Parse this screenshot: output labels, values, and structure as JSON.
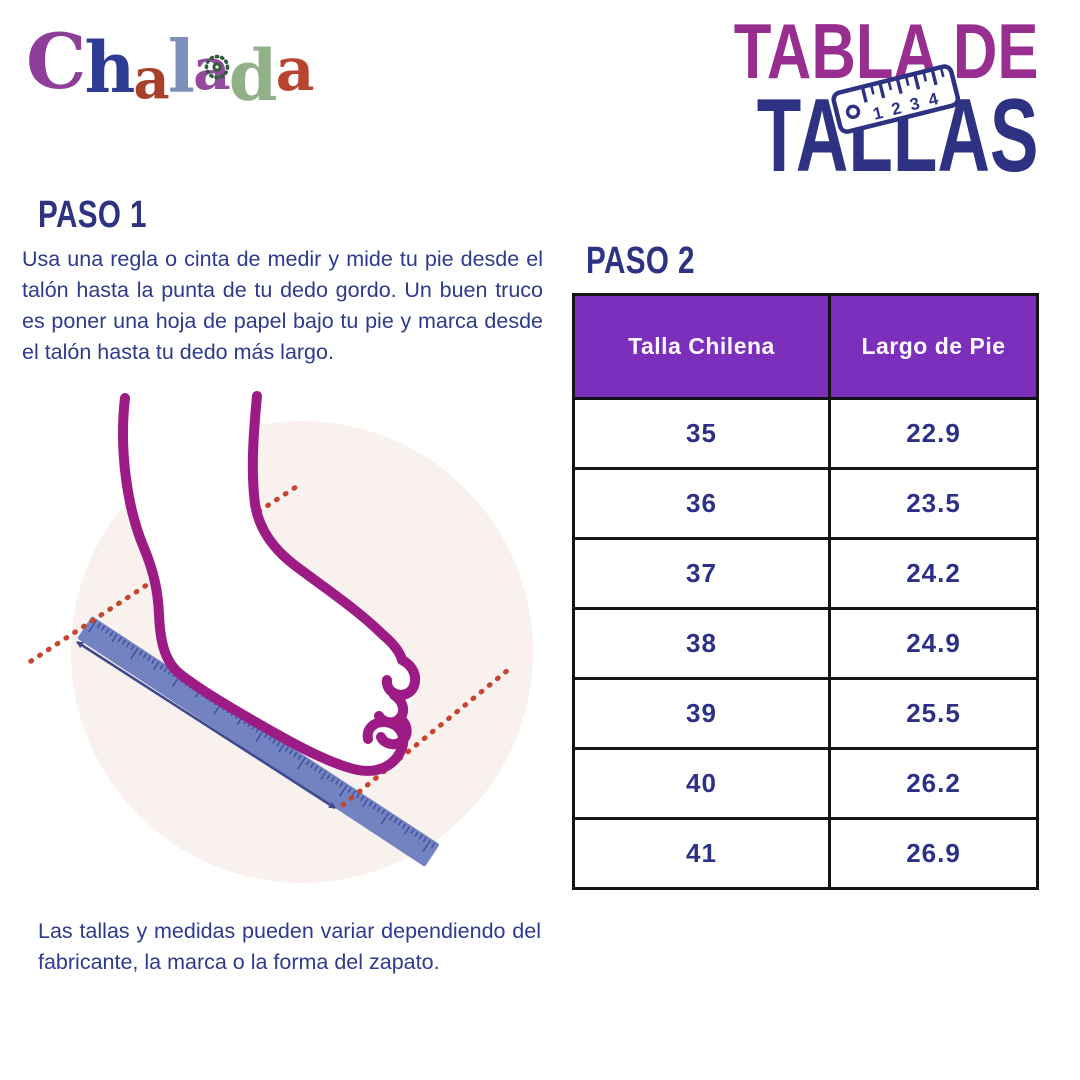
{
  "brand": {
    "name": "Chalada",
    "letters": [
      {
        "ch": "C",
        "color": "#8e3e99"
      },
      {
        "ch": "h",
        "color": "#2d3b94"
      },
      {
        "ch": "a",
        "color": "#a8402c"
      },
      {
        "ch": "l",
        "color": "#7d90bc"
      },
      {
        "ch": "a",
        "color": "#94499e"
      },
      {
        "ch": "d",
        "color": "#93b189"
      },
      {
        "ch": "a",
        "color": "#b8442f"
      }
    ]
  },
  "title": {
    "line1": "TABLA DE",
    "line2": "TALLAS",
    "ruler_digits": [
      "1",
      "2",
      "3",
      "4"
    ]
  },
  "step1": {
    "heading": "PASO 1",
    "body": "Usa una regla o cinta de medir y mide tu pie desde el talón hasta la punta de tu dedo gordo. Un buen truco es poner una hoja de papel bajo tu pie y marca desde el talón hasta tu dedo más largo."
  },
  "step2": {
    "heading": "PASO 2"
  },
  "note": "Las tallas y medidas pueden variar dependiendo del fabricante, la marca o la forma del zapato.",
  "table": {
    "headers": [
      "Talla Chilena",
      "Largo de Pie"
    ],
    "rows": [
      [
        "35",
        "22.9"
      ],
      [
        "36",
        "23.5"
      ],
      [
        "37",
        "24.2"
      ],
      [
        "38",
        "24.9"
      ],
      [
        "39",
        "25.5"
      ],
      [
        "40",
        "26.2"
      ],
      [
        "41",
        "26.9"
      ]
    ]
  },
  "colors": {
    "title_magenta": "#982e90",
    "navy": "#2d3282",
    "body_text": "#2e3a8c",
    "table_header_purple": "#7b2fbb",
    "table_border": "#141414",
    "foot_magenta": "#9c1b84",
    "ruler_blue": "#7383c1",
    "ruler_ticks": "#3b4da0",
    "dotted_red": "#c5452e",
    "arrow_navy": "#3f4b8f",
    "circle_background": "#f8f1ee"
  }
}
